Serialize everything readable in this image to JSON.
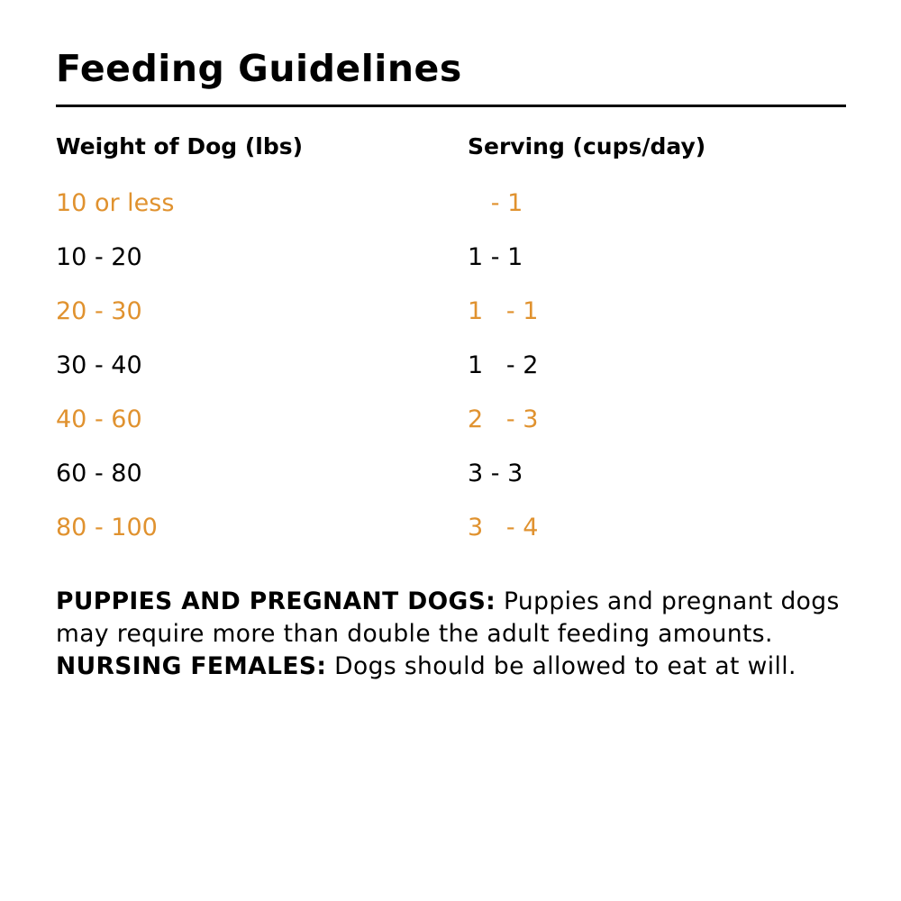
{
  "title": "Feeding Guidelines",
  "colors": {
    "accent": "#E0922F",
    "text": "#000000"
  },
  "table": {
    "headers": [
      "Weight of Dog (lbs)",
      "Serving (cups/day)"
    ],
    "rows": [
      {
        "weight": "10 or less",
        "serving": "   - 1",
        "highlight": true
      },
      {
        "weight": "10 - 20",
        "serving": "1 - 1",
        "highlight": false
      },
      {
        "weight": "20 - 30",
        "serving": "1   - 1",
        "highlight": true
      },
      {
        "weight": "30 - 40",
        "serving": "1   - 2",
        "highlight": false
      },
      {
        "weight": "40 - 60",
        "serving": "2   - 3",
        "highlight": true
      },
      {
        "weight": "60 - 80",
        "serving": "3 - 3",
        "highlight": false
      },
      {
        "weight": "80 - 100",
        "serving": "3   - 4",
        "highlight": true
      }
    ]
  },
  "note": {
    "label1": "PUPPIES AND PREGNANT DOGS:",
    "text1": " Puppies and pregnant dogs may require more than double the adult feeding amounts. ",
    "label2": "NURSING FEMALES:",
    "text2": " Dogs should be allowed to eat at will."
  }
}
